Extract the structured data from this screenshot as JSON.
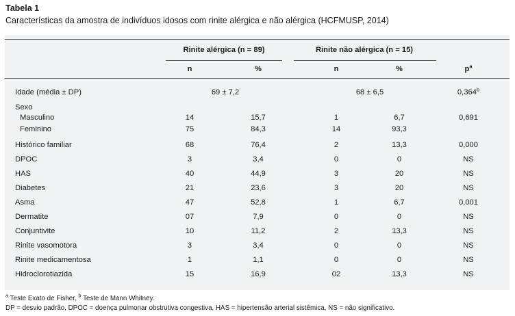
{
  "caption": {
    "label": "Tabela 1",
    "title": "Características da amostra de indivíduos idosos com rinite alérgica e não alérgica (HCFMUSP, 2014)"
  },
  "table": {
    "group1": "Rinite alérgica (n = 89)",
    "group2": "Rinite não alérgica (n = 15)",
    "col_n": "n",
    "col_pct": "%",
    "col_p": "p",
    "col_p_sup": "a",
    "age": {
      "label": "Idade (média ± DP)",
      "g1": "69 ± 7,2",
      "g2": "68 ± 6,5",
      "p": "0,364",
      "p_sup": "b"
    },
    "sex_label": "Sexo",
    "rows": [
      {
        "label": "Masculino",
        "indent": true,
        "n1": "14",
        "p1": "15,7",
        "n2": "1",
        "p2": "6,7",
        "p": "0,691"
      },
      {
        "label": "Feminino",
        "indent": true,
        "n1": "75",
        "p1": "84,3",
        "n2": "14",
        "p2": "93,3",
        "p": ""
      },
      {
        "label": "Histórico familiar",
        "n1": "68",
        "p1": "76,4",
        "n2": "2",
        "p2": "13,3",
        "p": "0,000"
      },
      {
        "label": "DPOC",
        "n1": "3",
        "p1": "3,4",
        "n2": "0",
        "p2": "0",
        "p": "NS"
      },
      {
        "label": "HAS",
        "n1": "40",
        "p1": "44,9",
        "n2": "3",
        "p2": "20",
        "p": "NS"
      },
      {
        "label": "Diabetes",
        "n1": "21",
        "p1": "23,6",
        "n2": "3",
        "p2": "20",
        "p": "NS"
      },
      {
        "label": "Asma",
        "n1": "47",
        "p1": "52,8",
        "n2": "1",
        "p2": "6,7",
        "p": "0,001"
      },
      {
        "label": "Dermatite",
        "n1": "07",
        "p1": "7,9",
        "n2": "0",
        "p2": "0",
        "p": "NS"
      },
      {
        "label": "Conjuntivite",
        "n1": "10",
        "p1": "11,2",
        "n2": "2",
        "p2": "13,3",
        "p": "NS"
      },
      {
        "label": "Rinite vasomotora",
        "n1": "3",
        "p1": "3,4",
        "n2": "0",
        "p2": "0",
        "p": "NS"
      },
      {
        "label": "Rinite medicamentosa",
        "n1": "1",
        "p1": "1,1",
        "n2": "0",
        "p2": "0",
        "p": "NS"
      },
      {
        "label": "Hidroclorotiazida",
        "n1": "15",
        "p1": "16,9",
        "n2": "02",
        "p2": "13,3",
        "p": "NS"
      }
    ]
  },
  "footnotes": {
    "sup_a": "a",
    "text_a": " Teste Exato de Fisher, ",
    "sup_b": "b",
    "text_b": " Teste de Mann Whitney.",
    "line2": "DP = desvio padrão, DPOC = doença pulmonar obstrutiva congestiva, HAS = hipertensão arterial sistêmica, NS = não significativo."
  }
}
